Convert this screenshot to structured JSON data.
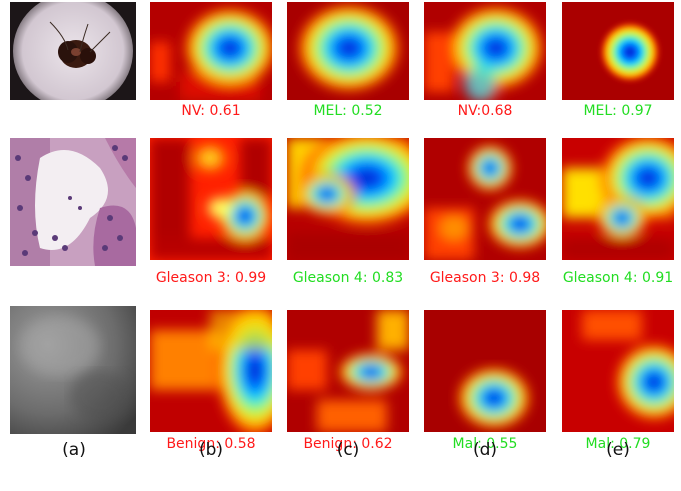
{
  "columns": [
    "(a)",
    "(b)",
    "(c)",
    "(d)",
    "(e)"
  ],
  "rows": [
    {
      "labels": [
        {
          "text": "NV: 0.61",
          "color": "red"
        },
        {
          "text": "MEL: 0.52",
          "color": "green"
        },
        {
          "text": "NV:0.68",
          "color": "red"
        },
        {
          "text": "MEL: 0.97",
          "color": "green"
        }
      ]
    },
    {
      "labels": [
        {
          "text": "Gleason 3: 0.99",
          "color": "red"
        },
        {
          "text": "Gleason 4: 0.83",
          "color": "green"
        },
        {
          "text": "Gleason 3: 0.98",
          "color": "red"
        },
        {
          "text": "Gleason 4: 0.91",
          "color": "green"
        }
      ]
    },
    {
      "labels": [
        {
          "text": "Benign: 0.58",
          "color": "red"
        },
        {
          "text": "Benign: 0.62",
          "color": "red"
        },
        {
          "text": "Mal: 0.55",
          "color": "green"
        },
        {
          "text": "Mal: 0.79",
          "color": "green"
        }
      ]
    }
  ],
  "colors": {
    "label_red": "#ff1a1a",
    "label_green": "#22dd22"
  }
}
